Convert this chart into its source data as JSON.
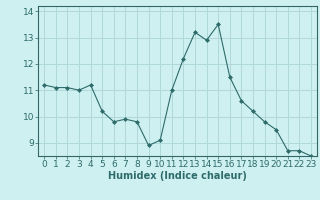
{
  "x": [
    0,
    1,
    2,
    3,
    4,
    5,
    6,
    7,
    8,
    9,
    10,
    11,
    12,
    13,
    14,
    15,
    16,
    17,
    18,
    19,
    20,
    21,
    22,
    23
  ],
  "y": [
    11.2,
    11.1,
    11.1,
    11.0,
    11.2,
    10.2,
    9.8,
    9.9,
    9.8,
    8.9,
    9.1,
    11.0,
    12.2,
    13.2,
    12.9,
    13.5,
    11.5,
    10.6,
    10.2,
    9.8,
    9.5,
    8.7,
    8.7,
    8.5
  ],
  "line_color": "#2e6b6b",
  "marker": "D",
  "marker_size": 2.0,
  "bg_color": "#cff0f0",
  "grid_color": "#b0d8d8",
  "xlabel": "Humidex (Indice chaleur)",
  "xlabel_fontsize": 7,
  "tick_fontsize": 6.5,
  "ylim": [
    8.5,
    14.2
  ],
  "xlim": [
    -0.5,
    23.5
  ],
  "yticks": [
    9,
    10,
    11,
    12,
    13,
    14
  ],
  "xticks": [
    0,
    1,
    2,
    3,
    4,
    5,
    6,
    7,
    8,
    9,
    10,
    11,
    12,
    13,
    14,
    15,
    16,
    17,
    18,
    19,
    20,
    21,
    22,
    23
  ]
}
